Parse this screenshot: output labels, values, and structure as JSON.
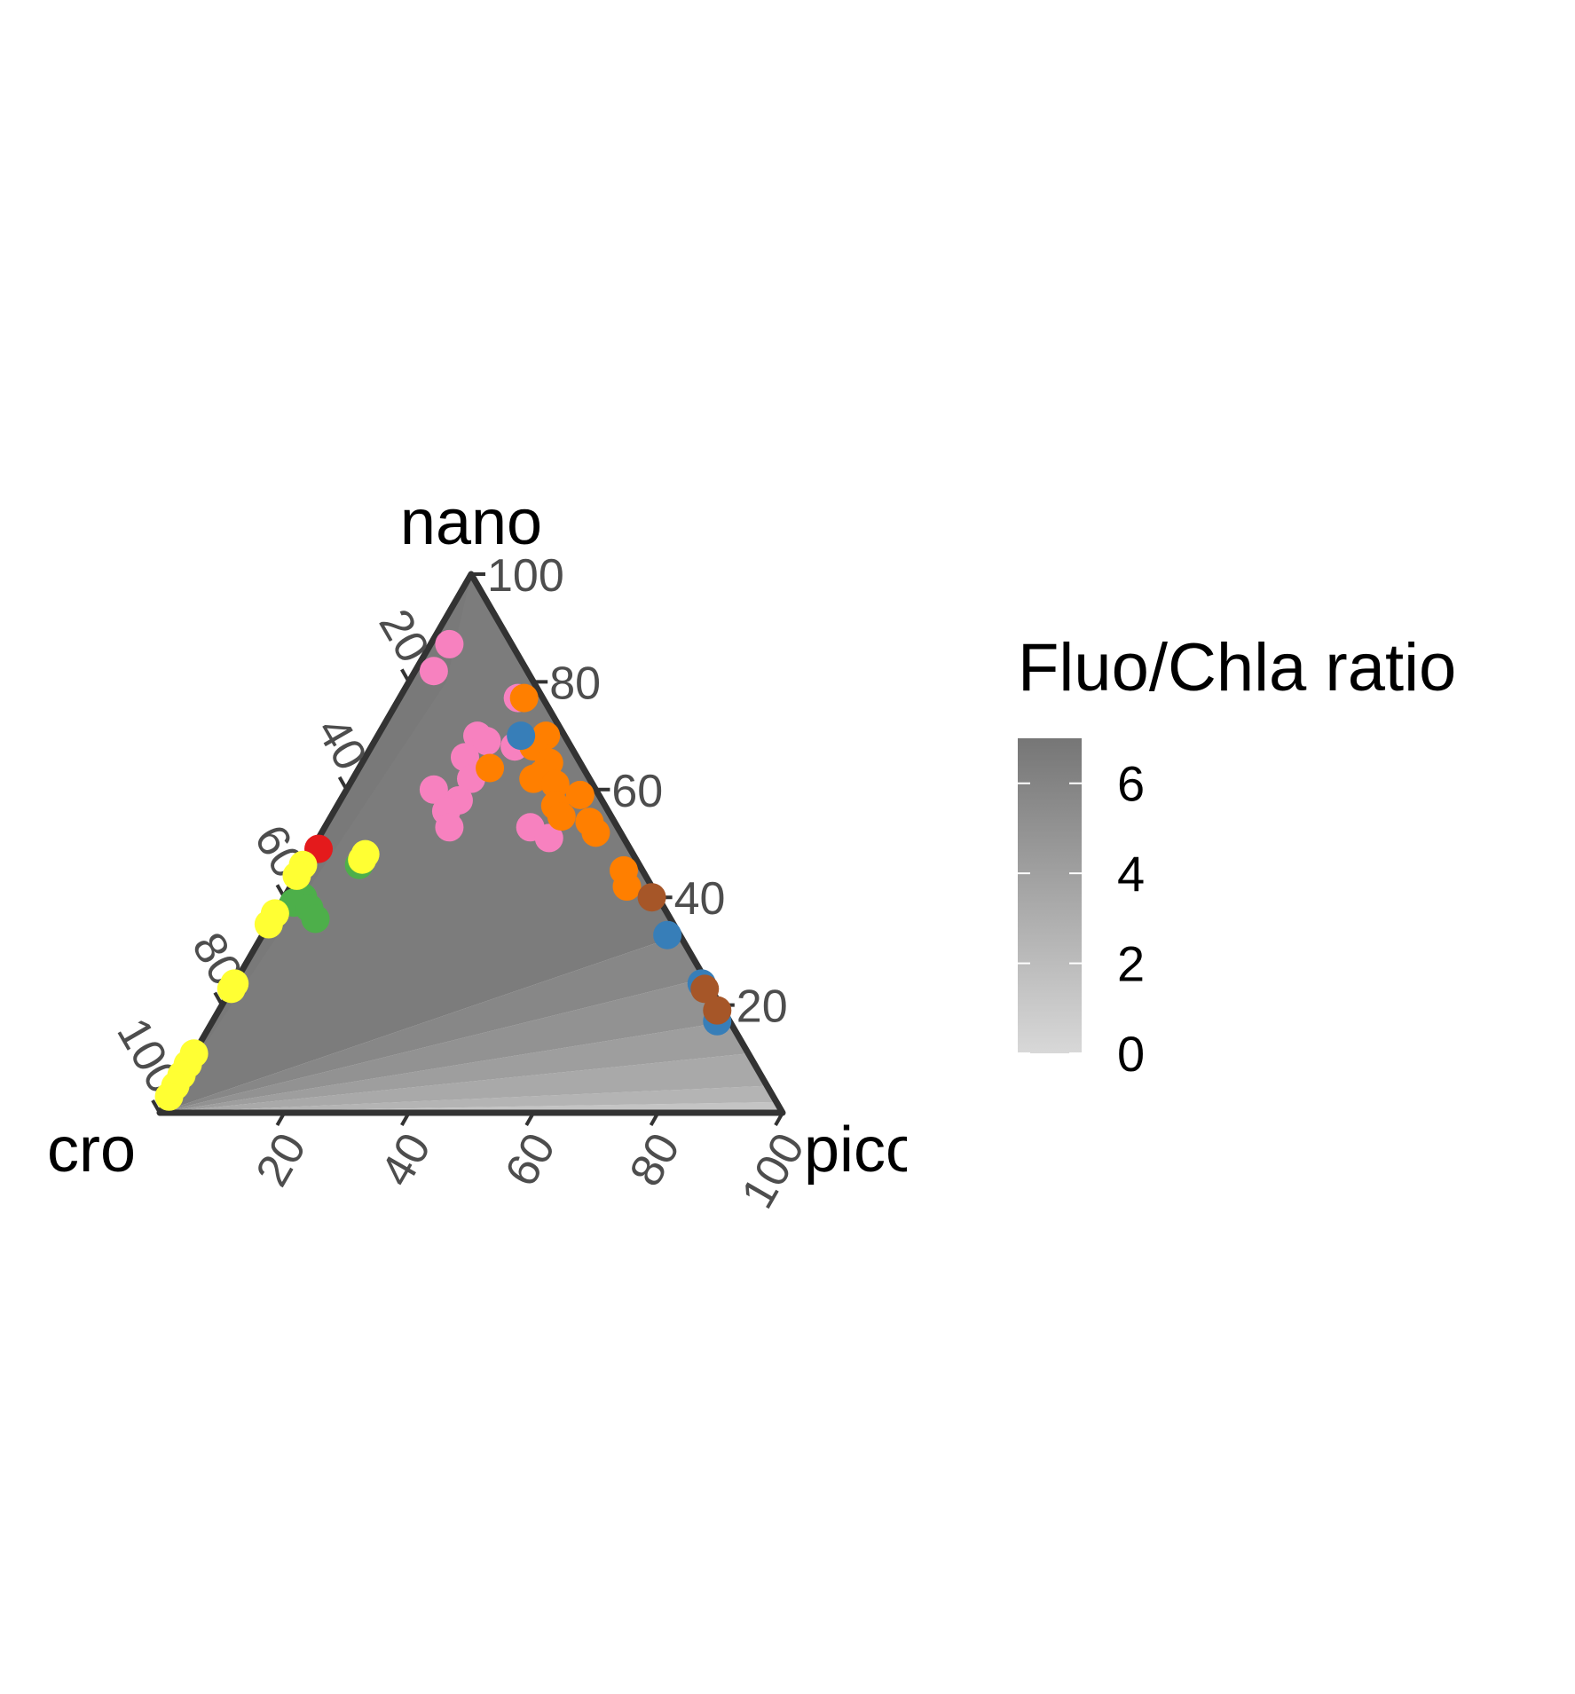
{
  "chart_data": {
    "type": "scatter",
    "subtype": "ternary",
    "axes": {
      "top": {
        "label": "nano",
        "ticks": [
          "20",
          "40",
          "60",
          "80",
          "100"
        ]
      },
      "left": {
        "label": "cro",
        "ticks": [
          "20",
          "40",
          "60",
          "80",
          "100"
        ]
      },
      "right": {
        "label": "pico",
        "ticks": [
          "20",
          "40",
          "60",
          "80",
          "100"
        ]
      }
    },
    "background": {
      "description": "filled contour of Fluo/Chla ratio",
      "levels": [
        {
          "value": 0.5,
          "color": "#d6d6d6"
        },
        {
          "value": 1.5,
          "color": "#c4c4c4"
        },
        {
          "value": 2.5,
          "color": "#b4b4b4"
        },
        {
          "value": 3.5,
          "color": "#a9a9a9"
        },
        {
          "value": 4.2,
          "color": "#9e9e9e"
        },
        {
          "value": 5.0,
          "color": "#929292"
        },
        {
          "value": 5.8,
          "color": "#878787"
        },
        {
          "value": 6.6,
          "color": "#7c7c7c"
        }
      ]
    },
    "legend": {
      "title": "Fluo/Chla ratio",
      "ticks": [
        "0",
        "2",
        "4",
        "6"
      ],
      "min": 0,
      "max": 7,
      "color_low": "#d8d8d8",
      "color_high": "#767676",
      "position": "right"
    },
    "series": [
      {
        "color": "#f781bf",
        "points": [
          {
            "nano": 87,
            "cro": 10,
            "pico": 3
          },
          {
            "nano": 82,
            "cro": 15,
            "pico": 3
          },
          {
            "nano": 77,
            "cro": 4,
            "pico": 19
          },
          {
            "nano": 70,
            "cro": 14,
            "pico": 16
          },
          {
            "nano": 69,
            "cro": 13,
            "pico": 18
          },
          {
            "nano": 68,
            "cro": 9,
            "pico": 23
          },
          {
            "nano": 66,
            "cro": 18,
            "pico": 16
          },
          {
            "nano": 62,
            "cro": 19,
            "pico": 19
          },
          {
            "nano": 60,
            "cro": 26,
            "pico": 14
          },
          {
            "nano": 58,
            "cro": 23,
            "pico": 19
          },
          {
            "nano": 56,
            "cro": 26,
            "pico": 18
          },
          {
            "nano": 53,
            "cro": 27,
            "pico": 20
          },
          {
            "nano": 53,
            "cro": 14,
            "pico": 33
          },
          {
            "nano": 51,
            "cro": 12,
            "pico": 37
          }
        ]
      },
      {
        "color": "#ff7f00",
        "points": [
          {
            "nano": 77,
            "cro": 3,
            "pico": 20
          },
          {
            "nano": 70,
            "cro": 3,
            "pico": 27
          },
          {
            "nano": 68,
            "cro": 6,
            "pico": 26
          },
          {
            "nano": 65,
            "cro": 5,
            "pico": 30
          },
          {
            "nano": 64,
            "cro": 15,
            "pico": 21
          },
          {
            "nano": 63,
            "cro": 7,
            "pico": 30
          },
          {
            "nano": 62,
            "cro": 9,
            "pico": 29
          },
          {
            "nano": 61,
            "cro": 6,
            "pico": 33
          },
          {
            "nano": 59,
            "cro": 3,
            "pico": 38
          },
          {
            "nano": 57,
            "cro": 8,
            "pico": 35
          },
          {
            "nano": 55,
            "cro": 8,
            "pico": 37
          },
          {
            "nano": 54,
            "cro": 4,
            "pico": 42
          },
          {
            "nano": 52,
            "cro": 4,
            "pico": 44
          },
          {
            "nano": 45,
            "cro": 3,
            "pico": 52
          },
          {
            "nano": 42,
            "cro": 4,
            "pico": 54
          }
        ]
      },
      {
        "color": "#377eb8",
        "points": [
          {
            "nano": 70,
            "cro": 7,
            "pico": 23
          },
          {
            "nano": 33,
            "cro": 2,
            "pico": 65
          },
          {
            "nano": 24,
            "cro": 1,
            "pico": 75
          },
          {
            "nano": 17,
            "cro": 2,
            "pico": 81
          }
        ]
      },
      {
        "color": "#a65628",
        "points": [
          {
            "nano": 40,
            "cro": 1,
            "pico": 59
          },
          {
            "nano": 23,
            "cro": 1,
            "pico": 76
          },
          {
            "nano": 19,
            "cro": 1,
            "pico": 80
          }
        ]
      },
      {
        "color": "#e41a1c",
        "points": [
          {
            "nano": 49,
            "cro": 50,
            "pico": 1
          }
        ]
      },
      {
        "color": "#4daf4a",
        "points": [
          {
            "nano": 46,
            "cro": 45,
            "pico": 9
          },
          {
            "nano": 40,
            "cro": 57,
            "pico": 3
          },
          {
            "nano": 39,
            "cro": 59,
            "pico": 2
          },
          {
            "nano": 38,
            "cro": 57,
            "pico": 5
          },
          {
            "nano": 36,
            "cro": 57,
            "pico": 7
          }
        ]
      },
      {
        "color": "#ffff33",
        "points": [
          {
            "nano": 48,
            "cro": 43,
            "pico": 9
          },
          {
            "nano": 47,
            "cro": 44,
            "pico": 9
          },
          {
            "nano": 46,
            "cro": 54,
            "pico": 0
          },
          {
            "nano": 44,
            "cro": 56,
            "pico": 0
          },
          {
            "nano": 37,
            "cro": 63,
            "pico": 0
          },
          {
            "nano": 35,
            "cro": 65,
            "pico": 0
          },
          {
            "nano": 24,
            "cro": 76,
            "pico": 0
          },
          {
            "nano": 23,
            "cro": 77,
            "pico": 0
          },
          {
            "nano": 11,
            "cro": 89,
            "pico": 0
          },
          {
            "nano": 9,
            "cro": 91,
            "pico": 0
          },
          {
            "nano": 7,
            "cro": 93,
            "pico": 0
          },
          {
            "nano": 5,
            "cro": 95,
            "pico": 0
          },
          {
            "nano": 3,
            "cro": 97,
            "pico": 0
          }
        ]
      }
    ]
  }
}
